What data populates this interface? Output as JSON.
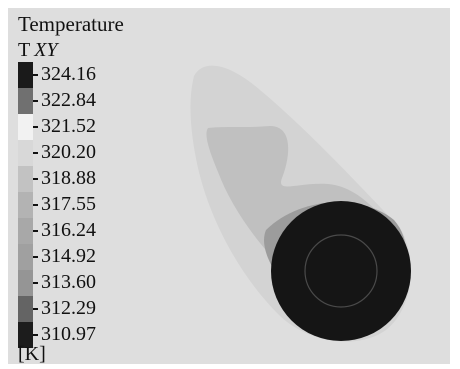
{
  "legend": {
    "title": "Temperature",
    "subtitle_prefix": "T",
    "subtitle_italic": "XY",
    "unit": "[K]",
    "entries": [
      {
        "value": "324.16",
        "color": "#1a1a1a"
      },
      {
        "value": "322.84",
        "color": "#707070"
      },
      {
        "value": "321.52",
        "color": "#f2f2f2"
      },
      {
        "value": "320.20",
        "color": "#d8d8d8"
      },
      {
        "value": "318.88",
        "color": "#c2c2c2"
      },
      {
        "value": "317.55",
        "color": "#b3b3b3"
      },
      {
        "value": "316.24",
        "color": "#a8a8a8"
      },
      {
        "value": "314.92",
        "color": "#a0a0a0"
      },
      {
        "value": "313.60",
        "color": "#959595"
      },
      {
        "value": "312.29",
        "color": "#646464"
      },
      {
        "value": "310.97",
        "color": "#1c1c1c"
      }
    ]
  }
}
